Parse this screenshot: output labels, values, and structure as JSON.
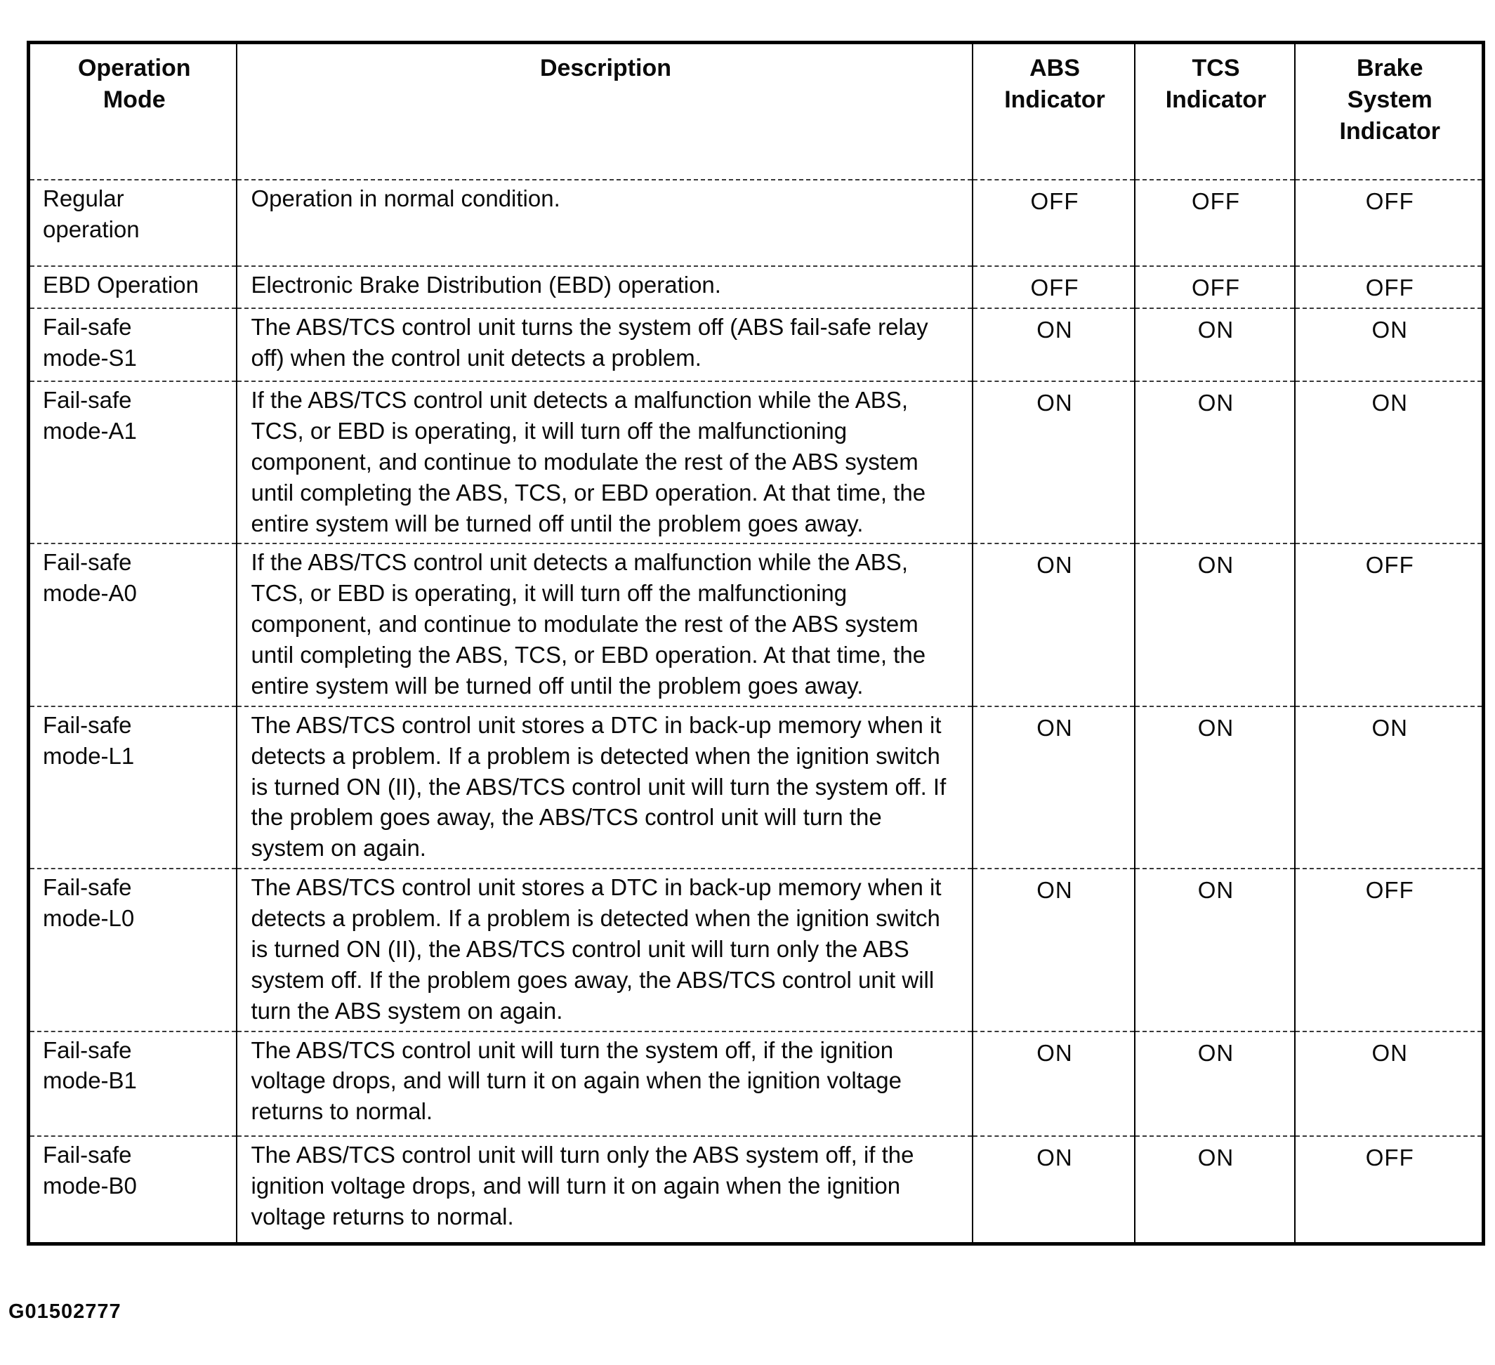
{
  "figure_id": "G01502777",
  "table": {
    "headers": {
      "operation_mode": "Operation\nMode",
      "description": "Description",
      "abs_indicator": "ABS\nIndicator",
      "tcs_indicator": "TCS\nIndicator",
      "brake_system_indicator": "Brake\nSystem\nIndicator"
    },
    "rows": [
      {
        "mode": "Regular\noperation",
        "description": "Operation in normal condition.",
        "abs": "OFF",
        "tcs": "OFF",
        "brake": "OFF"
      },
      {
        "mode": "EBD Operation",
        "description": "Electronic Brake Distribution (EBD) operation.",
        "abs": "OFF",
        "tcs": "OFF",
        "brake": "OFF"
      },
      {
        "mode": "Fail-safe\nmode-S1",
        "description": "The ABS/TCS control unit turns the system off (ABS fail-safe relay off) when the control unit detects a problem.",
        "abs": "ON",
        "tcs": "ON",
        "brake": "ON"
      },
      {
        "mode": "Fail-safe\nmode-A1",
        "description": "If the ABS/TCS control unit detects a malfunction while the ABS, TCS, or EBD is operating, it will turn off the malfunctioning component, and continue to modulate the rest of the ABS system until completing the ABS, TCS, or EBD operation. At that time, the entire system will be turned off until the problem goes away.",
        "abs": "ON",
        "tcs": "ON",
        "brake": "ON"
      },
      {
        "mode": "Fail-safe\nmode-A0",
        "description": "If the ABS/TCS control unit detects a malfunction while the ABS, TCS, or EBD is operating, it will turn off the malfunctioning component, and continue to modulate the rest of the ABS system until completing the ABS, TCS, or EBD operation. At that time, the entire system will be turned off until the problem goes away.",
        "abs": "ON",
        "tcs": "ON",
        "brake": "OFF"
      },
      {
        "mode": "Fail-safe\nmode-L1",
        "description": "The ABS/TCS control unit stores a DTC in back-up memory when it detects a problem. If a problem is detected when the ignition switch is turned ON (II), the ABS/TCS control unit will turn the system off. If the problem goes away, the ABS/TCS control unit will turn the system on again.",
        "abs": "ON",
        "tcs": "ON",
        "brake": "ON"
      },
      {
        "mode": "Fail-safe\nmode-L0",
        "description": "The ABS/TCS control unit stores a DTC in back-up memory when it detects a problem. If a problem is detected when the ignition switch is turned ON (II), the ABS/TCS control unit will turn only the ABS system off. If the problem goes away, the ABS/TCS control unit will turn the ABS system on again.",
        "abs": "ON",
        "tcs": "ON",
        "brake": "OFF"
      },
      {
        "mode": "Fail-safe\nmode-B1",
        "description": "The ABS/TCS control unit will turn the system off, if the ignition voltage drops, and will turn it on again when the ignition voltage returns to normal.",
        "abs": "ON",
        "tcs": "ON",
        "brake": "ON"
      },
      {
        "mode": "Fail-safe\nmode-B0",
        "description": "The ABS/TCS control unit will turn only the ABS system off, if the ignition voltage drops, and will turn it on again when the ignition voltage returns to normal.",
        "abs": "ON",
        "tcs": "ON",
        "brake": "OFF"
      }
    ]
  }
}
